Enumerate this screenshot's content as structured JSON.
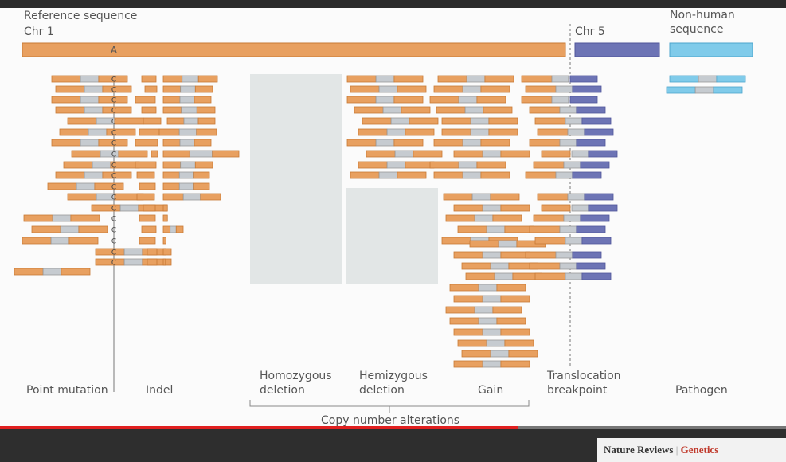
{
  "reference_label": "Reference sequence",
  "chr1_label": "Chr 1",
  "reference_base": "A",
  "chr5_label": "Chr 5",
  "nonhuman_label": "Non-human sequence",
  "mutant_base": "C",
  "categories": {
    "point_mutation": "Point mutation",
    "indel": "Indel",
    "homozygous": "Homozygous deletion",
    "hemizygous": "Hemizygous deletion",
    "gain": "Gain",
    "translocation": "Translocation breakpoint",
    "pathogen": "Pathogen"
  },
  "group_label": "Copy number alterations",
  "footer": [
    "Nature Reviews",
    "|",
    "Genetics"
  ]
}
